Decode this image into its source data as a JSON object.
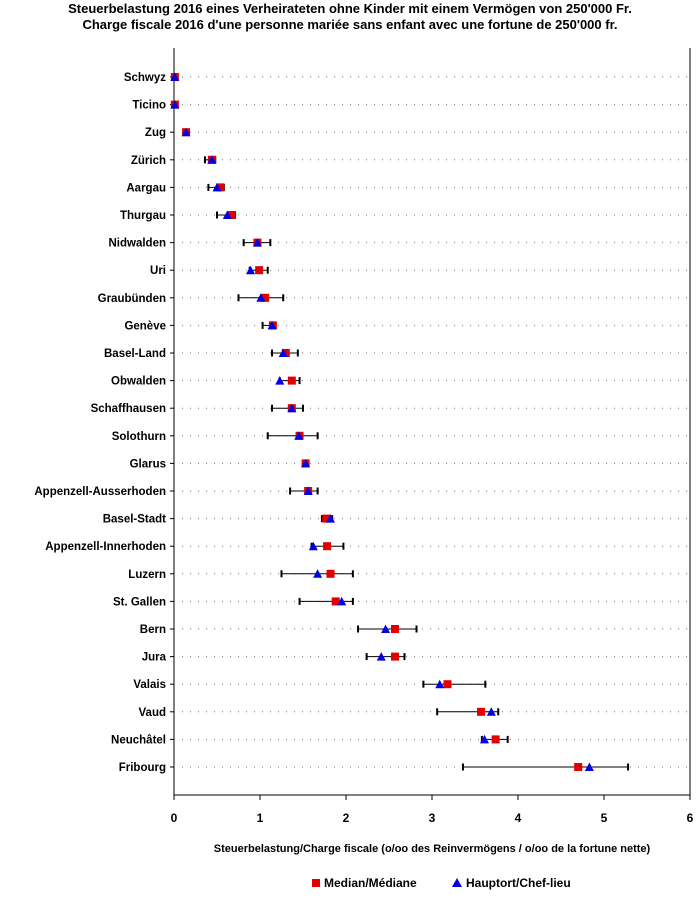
{
  "chart_data": {
    "type": "dot-range",
    "title": "Steuerbelastung 2016 eines Verheirateten ohne Kinder mit einem Vermögen von 250'000 Fr.",
    "subtitle": "Charge fiscale 2016 d'une personne mariée sans enfant avec une fortune de 250'000 fr.",
    "xlabel": "Steuerbelastung/Charge fiscale (o/oo des Reinvermögens / o/oo de la fortune nette)",
    "xlim": [
      0,
      6
    ],
    "xticks": [
      "0",
      "1",
      "2",
      "3",
      "4",
      "5",
      "6"
    ],
    "grid": "dotted horizontal",
    "legend": [
      {
        "name": "Median/Médiane",
        "marker": "square",
        "color": "#e00000"
      },
      {
        "name": "Hauptort/Chef-lieu",
        "marker": "triangle",
        "color": "#0000e0"
      }
    ],
    "legend_position": "bottom",
    "categories": [
      "Schwyz",
      "Ticino",
      "Zug",
      "Zürich",
      "Aargau",
      "Thurgau",
      "Nidwalden",
      "Uri",
      "Graubünden",
      "Genève",
      "Basel-Land",
      "Obwalden",
      "Schaffhausen",
      "Solothurn",
      "Glarus",
      "Appenzell-Ausserhoden",
      "Basel-Stadt",
      "Appenzell-Innerhoden",
      "Luzern",
      "St. Gallen",
      "Bern",
      "Jura",
      "Valais",
      "Vaud",
      "Neuchâtel",
      "Fribourg"
    ],
    "min": [
      0.0,
      0.0,
      0.12,
      0.36,
      0.4,
      0.5,
      0.81,
      0.88,
      0.75,
      1.03,
      1.14,
      1.23,
      1.14,
      1.09,
      1.51,
      1.35,
      1.72,
      1.6,
      1.25,
      1.46,
      2.14,
      2.24,
      2.9,
      3.06,
      3.58,
      3.36
    ],
    "max": [
      0.03,
      0.03,
      0.17,
      0.48,
      0.58,
      0.71,
      1.12,
      1.09,
      1.27,
      1.17,
      1.44,
      1.46,
      1.5,
      1.67,
      1.54,
      1.67,
      1.84,
      1.97,
      2.08,
      2.08,
      2.82,
      2.68,
      3.62,
      3.77,
      3.88,
      5.28
    ],
    "median": [
      0.01,
      0.01,
      0.14,
      0.44,
      0.54,
      0.67,
      0.97,
      0.99,
      1.06,
      1.15,
      1.3,
      1.37,
      1.37,
      1.46,
      1.53,
      1.56,
      1.77,
      1.78,
      1.82,
      1.88,
      2.57,
      2.57,
      3.18,
      3.57,
      3.74,
      4.7
    ],
    "hauptort": [
      0.01,
      0.01,
      0.14,
      0.44,
      0.5,
      0.62,
      0.97,
      0.89,
      1.01,
      1.14,
      1.27,
      1.23,
      1.37,
      1.45,
      1.53,
      1.56,
      1.82,
      1.62,
      1.67,
      1.95,
      2.46,
      2.41,
      3.09,
      3.69,
      3.61,
      4.83
    ]
  }
}
